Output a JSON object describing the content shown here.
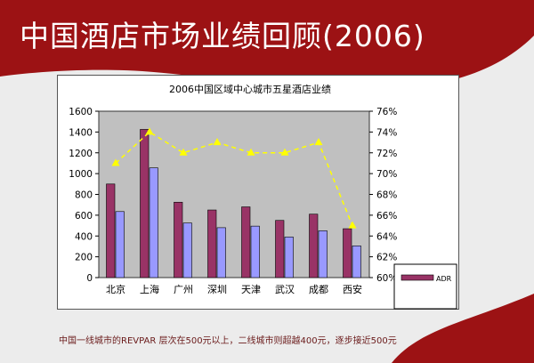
{
  "slide": {
    "title": "中国酒店市场业绩回顾(2006)",
    "footer": "中国一线城市的REVPAR 层次在500元以上，二线城市则超越400元，逐步接近500元"
  },
  "colors": {
    "slide_red": "#9c1214",
    "plot_bg": "#c0c0c0",
    "adr_fill": "#993366",
    "revpar_fill": "#9999ff",
    "occupancy_line": "#ffff00"
  },
  "chart_data": {
    "type": "bar",
    "title": "2006中国区域中心城市五星酒店业绩",
    "categories": [
      "北京",
      "上海",
      "广州",
      "深圳",
      "天津",
      "武汉",
      "成都",
      "西安"
    ],
    "y_left": {
      "ylim": [
        0,
        1600
      ],
      "ticks": [
        "0",
        "200",
        "400",
        "600",
        "800",
        "1000",
        "1200",
        "1400",
        "1600"
      ]
    },
    "y_right": {
      "ylim": [
        60,
        76
      ],
      "ticks": [
        "60%",
        "62%",
        "64%",
        "66%",
        "68%",
        "70%",
        "72%",
        "74%",
        "76%"
      ]
    },
    "series": [
      {
        "name": "ADR",
        "type": "bar",
        "axis": "left",
        "values": [
          900,
          1425,
          725,
          650,
          680,
          550,
          610,
          470
        ]
      },
      {
        "type": "bar",
        "axis": "left",
        "values": [
          635,
          1055,
          525,
          480,
          495,
          390,
          450,
          305
        ]
      },
      {
        "type": "line",
        "axis": "right",
        "values": [
          71,
          74,
          72,
          73,
          72,
          72,
          73,
          65
        ]
      }
    ],
    "legend_position": "bottom-right",
    "grid": false
  }
}
